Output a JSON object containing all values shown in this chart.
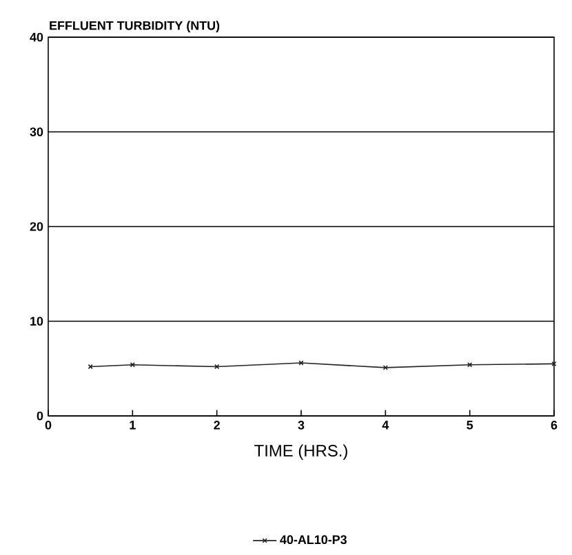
{
  "chart_data": {
    "type": "line",
    "ylabel": "EFFLUENT TURBIDITY (NTU)",
    "xlabel": "TIME (HRS.)",
    "x": [
      0.5,
      1,
      2,
      3,
      4,
      5,
      6
    ],
    "series": [
      {
        "name": "40-AL10-P3",
        "color": "#222222",
        "values": [
          5.2,
          5.4,
          5.2,
          5.6,
          5.1,
          5.4,
          5.5
        ]
      }
    ],
    "xlim": [
      0,
      6
    ],
    "xticks": [
      0,
      1,
      2,
      3,
      4,
      5,
      6
    ],
    "ylim": [
      0,
      40
    ],
    "yticks": [
      0,
      10,
      20,
      30,
      40
    ],
    "grid": "y",
    "legend": "bottom",
    "marker": "cross",
    "line_style": "solid"
  }
}
